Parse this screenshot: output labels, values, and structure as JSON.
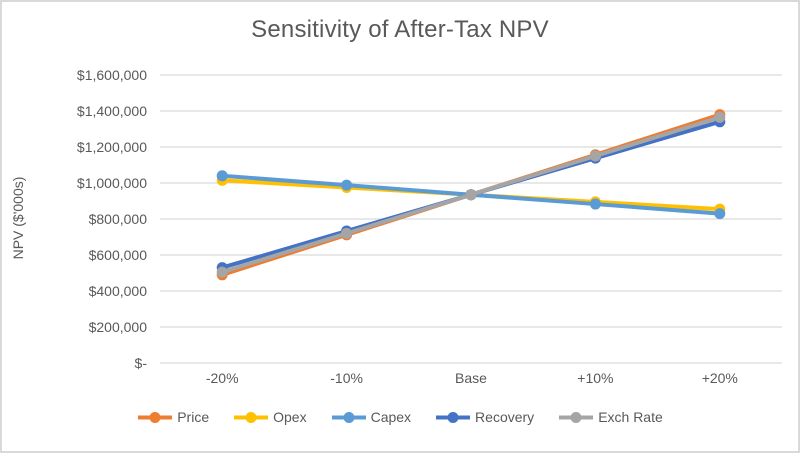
{
  "chart": {
    "title": "Sensitivity of After-Tax NPV",
    "y_axis_title": "NPV ($'000s)",
    "background_color": "#ffffff",
    "border_color": "#d9d9d9",
    "gridline_color": "#d9d9d9",
    "text_color": "#595959"
  },
  "chart_data": {
    "type": "line",
    "title": "Sensitivity of After-Tax NPV",
    "xlabel": "",
    "ylabel": "NPV ($'000s)",
    "categories": [
      "-20%",
      "-10%",
      "Base",
      "+10%",
      "+20%"
    ],
    "series": [
      {
        "name": "Price",
        "color": "#ED7D31",
        "values": [
          490000,
          712000,
          935000,
          1157000,
          1380000
        ]
      },
      {
        "name": "Opex",
        "color": "#FFC000",
        "values": [
          1015000,
          975000,
          935000,
          895000,
          855000
        ]
      },
      {
        "name": "Capex",
        "color": "#5B9BD5",
        "values": [
          1040000,
          988000,
          935000,
          883000,
          830000
        ]
      },
      {
        "name": "Recovery",
        "color": "#4472C4",
        "values": [
          530000,
          733000,
          935000,
          1138000,
          1340000
        ]
      },
      {
        "name": "Exch Rate",
        "color": "#A5A5A5",
        "values": [
          505000,
          720000,
          935000,
          1150000,
          1365000
        ]
      }
    ],
    "ylim": [
      0,
      1600000
    ],
    "ytick_step": 200000,
    "ytick_labels": [
      "$-",
      "$200,000",
      "$400,000",
      "$600,000",
      "$800,000",
      "$1,000,000",
      "$1,200,000",
      "$1,400,000",
      "$1,600,000"
    ],
    "grid": true,
    "legend_position": "bottom",
    "marker": "circle"
  }
}
